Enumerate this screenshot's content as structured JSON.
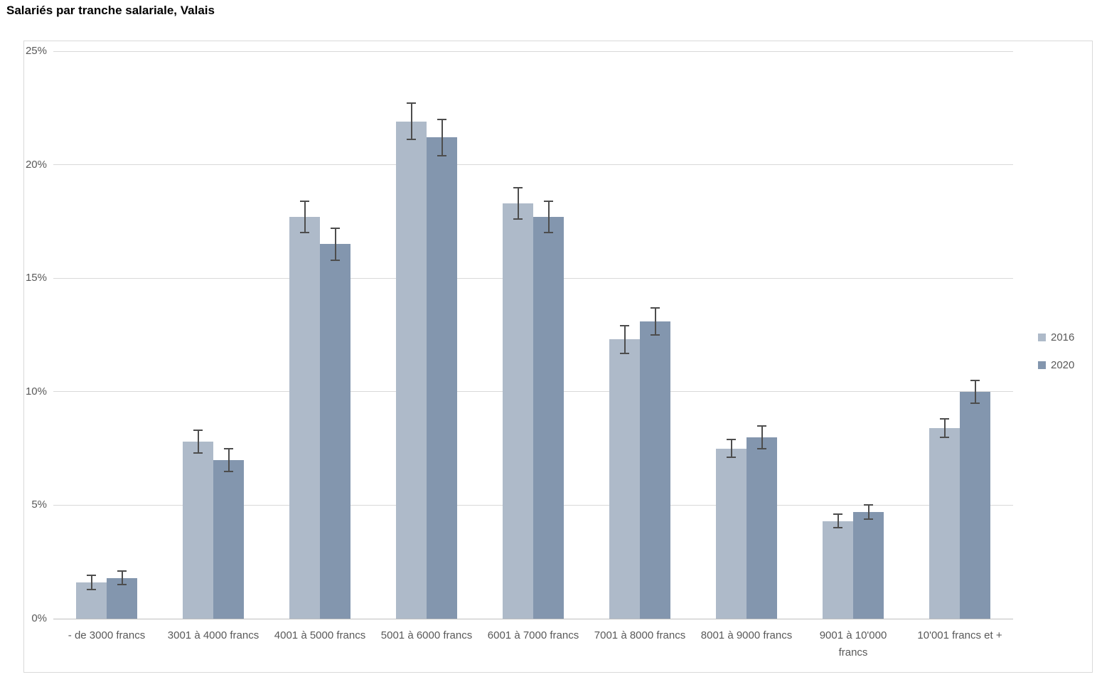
{
  "title": "Salariés par tranche salariale, Valais",
  "colors": {
    "series_2016": "#aebac9",
    "series_2020": "#8396ae",
    "gridline": "#d9d9d9",
    "axis_line": "#bfbfbf",
    "error_bar": "#4d4d4d",
    "text_gray": "#595959",
    "title_text": "#000000",
    "frame_border": "#d9d9d9"
  },
  "chart_data": {
    "type": "bar",
    "title": "Salariés par tranche salariale, Valais",
    "categories": [
      "- de 3000 francs",
      "3001 à 4000 francs",
      "4001 à 5000 francs",
      "5001 à 6000 francs",
      "6001 à 7000 francs",
      "7001 à 8000 francs",
      "8001 à 9000 francs",
      "9001 à 10'000\nfrancs",
      "10'001 francs et +"
    ],
    "series": [
      {
        "name": "2016",
        "color": "#aebac9",
        "values": [
          1.6,
          7.8,
          17.7,
          21.9,
          18.3,
          12.3,
          7.5,
          4.3,
          8.4
        ],
        "errors": [
          0.3,
          0.5,
          0.7,
          0.8,
          0.7,
          0.6,
          0.4,
          0.3,
          0.4
        ]
      },
      {
        "name": "2020",
        "color": "#8396ae",
        "values": [
          1.8,
          7.0,
          16.5,
          21.2,
          17.7,
          13.1,
          8.0,
          4.7,
          10.0
        ],
        "errors": [
          0.3,
          0.5,
          0.7,
          0.8,
          0.7,
          0.6,
          0.5,
          0.3,
          0.5
        ]
      }
    ],
    "xlabel": "",
    "ylabel": "",
    "ylim": [
      0,
      25
    ],
    "yticks": [
      0,
      5,
      10,
      15,
      20,
      25
    ],
    "ytick_labels": [
      "0%",
      "5%",
      "10%",
      "15%",
      "20%",
      "25%"
    ],
    "grid": true,
    "error_bars": true,
    "legend_position": "right"
  }
}
